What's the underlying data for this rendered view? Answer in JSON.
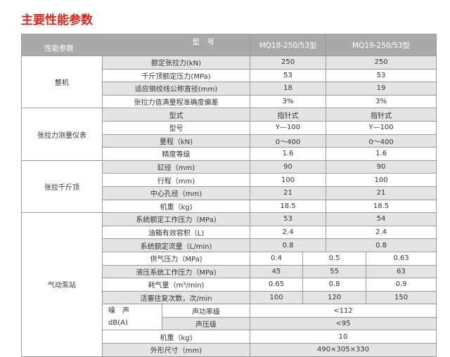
{
  "title": "主要性能参数",
  "header": {
    "corner_top": "型　号",
    "corner_bottom": "性能参数",
    "models": [
      "MQ18-250/53型",
      "MQ19-250/53型"
    ]
  },
  "groups": [
    {
      "name": "整机",
      "rows": [
        {
          "param": "额定张拉力(kN)",
          "values": [
            "250",
            "250"
          ]
        },
        {
          "param": "千斤顶额定压力(MPa)",
          "values": [
            "53",
            "53"
          ]
        },
        {
          "param": "适应钢绞线公称直径(mm)",
          "values": [
            "18",
            "19"
          ]
        },
        {
          "param": "张拉力值满量程准确度偏差",
          "values": [
            "3%",
            "3%"
          ]
        }
      ]
    },
    {
      "name": "张拉力测量仪表",
      "rows": [
        {
          "param": "型式",
          "values": [
            "指针式",
            "指针式"
          ]
        },
        {
          "param": "型号",
          "values": [
            "Y—100",
            "Y—100"
          ]
        },
        {
          "param": "量程（kN)",
          "values": [
            "0～400",
            "0～400"
          ]
        },
        {
          "param": "精度等级",
          "values": [
            "1.6",
            "1.6"
          ]
        }
      ]
    },
    {
      "name": "张拉千斤顶",
      "rows": [
        {
          "param": "缸径（mm)",
          "values": [
            "90",
            "90"
          ]
        },
        {
          "param": "行程（mm)",
          "values": [
            "100",
            "100"
          ]
        },
        {
          "param": "中心孔径（mm)",
          "values": [
            "21",
            "21"
          ]
        },
        {
          "param": "机重（kg)",
          "values": [
            "18.5",
            "18.5"
          ]
        }
      ]
    },
    {
      "name": "气动泵站",
      "rows": [
        {
          "param": "系统额定工作压力（MPa)",
          "values": [
            "53",
            "54"
          ]
        },
        {
          "param": "油箱有效容积（L)",
          "values": [
            "2.4",
            "2.4"
          ]
        },
        {
          "param": "系统额定流量（L/min)",
          "values": [
            "0.8",
            "0.8"
          ]
        },
        {
          "param": "供气压力（MPa)",
          "values": [
            "0.4",
            "0.5",
            "0.63"
          ]
        },
        {
          "param": "液压系统工作压力（MPa)",
          "values": [
            "45",
            "55",
            "63"
          ]
        },
        {
          "param": "耗气量（m³/min)",
          "values": [
            "0.65",
            "0.8",
            "0.9"
          ]
        },
        {
          "param": "活塞往复次数，次/min",
          "values": [
            "100",
            "120",
            "150"
          ]
        },
        {
          "sublabel": [
            "噪　声",
            "dB(A)"
          ],
          "rows": [
            {
              "param": "声功率级",
              "values": [
                "<112"
              ]
            },
            {
              "param": "声压级",
              "values": [
                "<95"
              ]
            }
          ]
        },
        {
          "param": "机重（kg)",
          "values": [
            "10"
          ]
        },
        {
          "param": "外形尺寸（mm)",
          "values": [
            "490×305×330"
          ]
        }
      ]
    }
  ]
}
